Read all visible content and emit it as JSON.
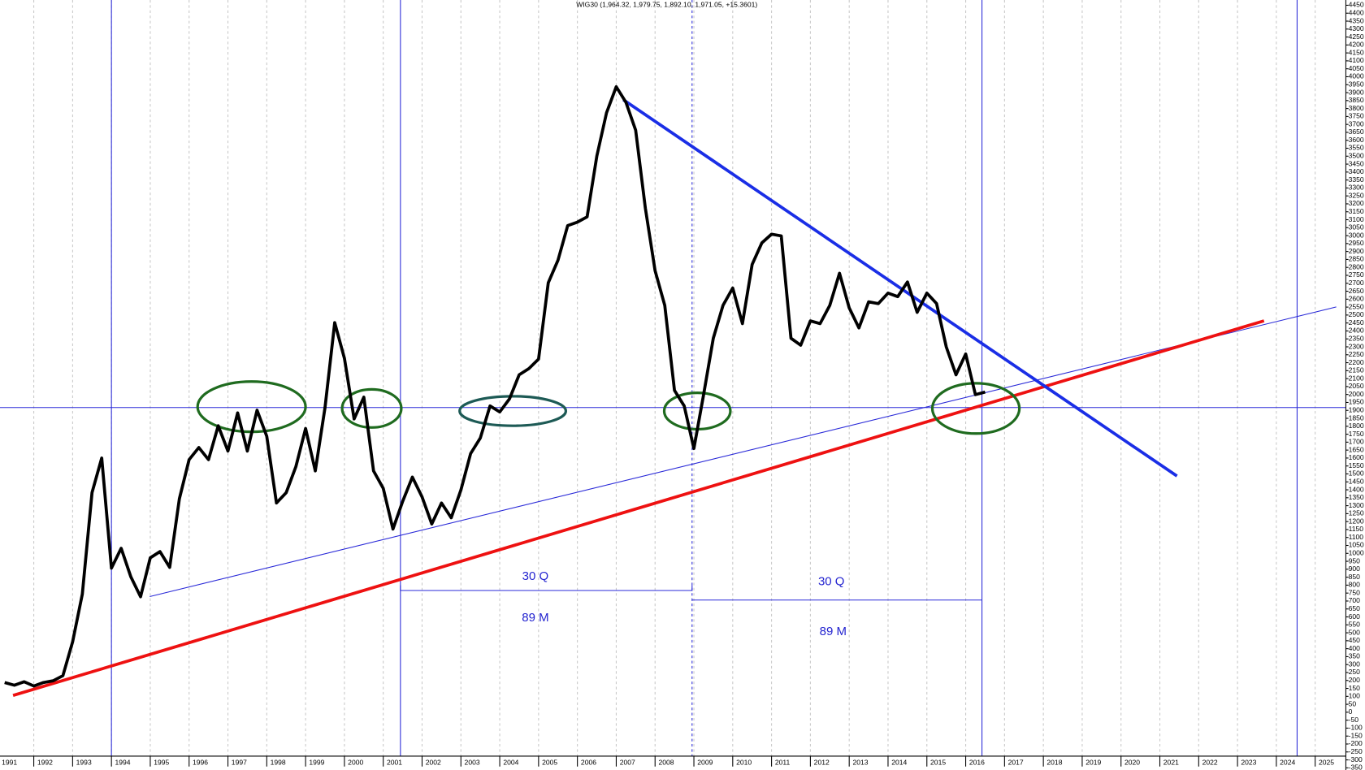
{
  "chart_data": {
    "type": "line",
    "title": "WIG30 (1,964.32, 1,979.75, 1,892.10, 1,971.05, +15.3601)",
    "x": [
      1991.25,
      1991.5,
      1991.75,
      1992,
      1992.25,
      1992.5,
      1992.75,
      1993,
      1993.25,
      1993.5,
      1993.75,
      1994,
      1994.25,
      1994.5,
      1994.75,
      1995,
      1995.25,
      1995.5,
      1995.75,
      1996,
      1996.25,
      1996.5,
      1996.75,
      1997,
      1997.25,
      1997.5,
      1997.75,
      1998,
      1998.25,
      1998.5,
      1998.75,
      1999,
      1999.25,
      1999.5,
      1999.75,
      2000,
      2000.25,
      2000.5,
      2000.75,
      2001,
      2001.25,
      2001.5,
      2001.75,
      2002,
      2002.25,
      2002.5,
      2002.75,
      2003,
      2003.25,
      2003.5,
      2003.75,
      2004,
      2004.25,
      2004.5,
      2004.75,
      2005,
      2005.25,
      2005.5,
      2005.75,
      2006,
      2006.25,
      2006.5,
      2006.75,
      2007,
      2007.25,
      2007.5,
      2007.75,
      2008,
      2008.25,
      2008.5,
      2008.75,
      2009,
      2009.25,
      2009.5,
      2009.75,
      2010,
      2010.25,
      2010.5,
      2010.75,
      2011,
      2011.25,
      2011.5,
      2011.75,
      2012,
      2012.25,
      2012.5,
      2012.75,
      2013,
      2013.25,
      2013.5,
      2013.75,
      2014,
      2014.25,
      2014.5,
      2014.75,
      2015,
      2015.25,
      2015.5,
      2015.75,
      2016,
      2016.25,
      2016.5
    ],
    "values": [
      187,
      170,
      192,
      165,
      187,
      198,
      230,
      443,
      743,
      1382,
      1600,
      907,
      1032,
      852,
      727,
      972,
      1011,
      912,
      1344,
      1590,
      1666,
      1590,
      1803,
      1644,
      1884,
      1644,
      1901,
      1737,
      1317,
      1382,
      1546,
      1786,
      1519,
      1917,
      2452,
      2228,
      1846,
      1983,
      1519,
      1409,
      1153,
      1327,
      1480,
      1355,
      1185,
      1317,
      1224,
      1399,
      1628,
      1726,
      1928,
      1890,
      1972,
      2124,
      2163,
      2223,
      2703,
      2845,
      3063,
      3085,
      3118,
      3500,
      3773,
      3937,
      3839,
      3664,
      3173,
      2780,
      2561,
      2026,
      1928,
      1660,
      1999,
      2354,
      2561,
      2670,
      2446,
      2818,
      2954,
      3009,
      2998,
      2354,
      2310,
      2463,
      2446,
      2561,
      2763,
      2545,
      2419,
      2583,
      2572,
      2638,
      2616,
      2708,
      2517,
      2638,
      2572,
      2299,
      2124,
      2255,
      1999,
      2015
    ],
    "color": "#000000",
    "xlim": [
      1991.13,
      2025.79
    ],
    "ylim": [
      -380,
      4483
    ],
    "xticks": [
      1991,
      1992,
      1993,
      1994,
      1995,
      1996,
      1997,
      1998,
      1999,
      2000,
      2001,
      2002,
      2003,
      2004,
      2005,
      2006,
      2007,
      2008,
      2009,
      2010,
      2011,
      2012,
      2013,
      2014,
      2015,
      2016,
      2017,
      2018,
      2019,
      2020,
      2021,
      2022,
      2023,
      2024,
      2025
    ],
    "yticks": [
      -350,
      -300,
      -250,
      -200,
      -150,
      -100,
      -50,
      0,
      50,
      100,
      150,
      200,
      250,
      300,
      350,
      400,
      450,
      500,
      550,
      600,
      650,
      700,
      750,
      800,
      850,
      900,
      950,
      1000,
      1050,
      1100,
      1150,
      1200,
      1250,
      1300,
      1350,
      1400,
      1450,
      1500,
      1550,
      1600,
      1650,
      1700,
      1750,
      1800,
      1850,
      1900,
      1950,
      2000,
      2050,
      2100,
      2150,
      2200,
      2250,
      2300,
      2350,
      2400,
      2450,
      2500,
      2550,
      2600,
      2650,
      2700,
      2750,
      2800,
      2850,
      2900,
      2950,
      3000,
      3050,
      3100,
      3150,
      3200,
      3250,
      3300,
      3350,
      3400,
      3450,
      3500,
      3550,
      3600,
      3650,
      3700,
      3750,
      3800,
      3850,
      3900,
      3950,
      4000,
      4050,
      4100,
      4150,
      4200,
      4250,
      4300,
      4350,
      4400,
      4450
    ],
    "grid": true,
    "annotations": [
      "30 Q",
      "89 M",
      "30 Q",
      "89 M"
    ]
  }
}
